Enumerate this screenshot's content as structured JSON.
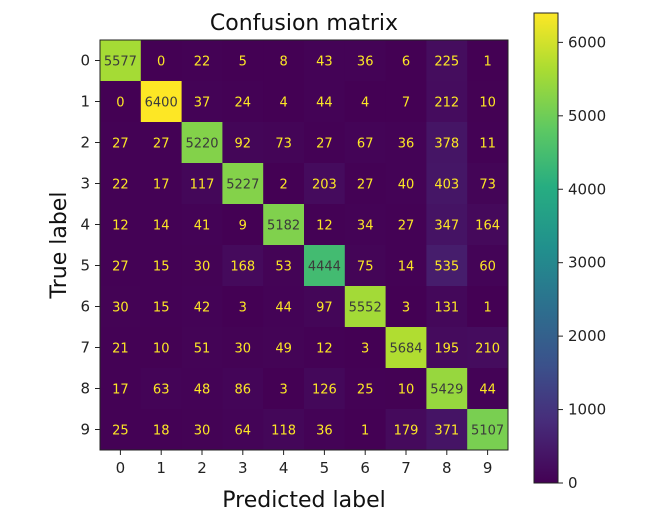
{
  "chart_data": {
    "type": "heatmap",
    "title": "Confusion matrix",
    "xlabel": "Predicted label",
    "ylabel": "True label",
    "x_categories": [
      "0",
      "1",
      "2",
      "3",
      "4",
      "5",
      "6",
      "7",
      "8",
      "9"
    ],
    "y_categories": [
      "0",
      "1",
      "2",
      "3",
      "4",
      "5",
      "6",
      "7",
      "8",
      "9"
    ],
    "values": [
      [
        5577,
        0,
        22,
        5,
        8,
        43,
        36,
        6,
        225,
        1
      ],
      [
        0,
        6400,
        37,
        24,
        4,
        44,
        4,
        7,
        212,
        10
      ],
      [
        27,
        27,
        5220,
        92,
        73,
        27,
        67,
        36,
        378,
        11
      ],
      [
        22,
        17,
        117,
        5227,
        2,
        203,
        27,
        40,
        403,
        73
      ],
      [
        12,
        14,
        41,
        9,
        5182,
        12,
        34,
        27,
        347,
        164
      ],
      [
        27,
        15,
        30,
        168,
        53,
        4444,
        75,
        14,
        535,
        60
      ],
      [
        30,
        15,
        42,
        3,
        44,
        97,
        5552,
        3,
        131,
        1
      ],
      [
        21,
        10,
        51,
        30,
        49,
        12,
        3,
        5684,
        195,
        210
      ],
      [
        17,
        63,
        48,
        86,
        3,
        126,
        25,
        10,
        5429,
        44
      ],
      [
        25,
        18,
        30,
        64,
        118,
        36,
        1,
        179,
        371,
        5107
      ]
    ],
    "colormap": "viridis",
    "vmin": 0,
    "vmax": 6400,
    "colorbar_ticks": [
      0,
      1000,
      2000,
      3000,
      4000,
      5000,
      6000
    ],
    "colorbar_tick_labels": [
      "0",
      "1000",
      "2000",
      "3000",
      "4000",
      "5000",
      "6000"
    ],
    "legend": "colorbar-right",
    "grid": false
  }
}
